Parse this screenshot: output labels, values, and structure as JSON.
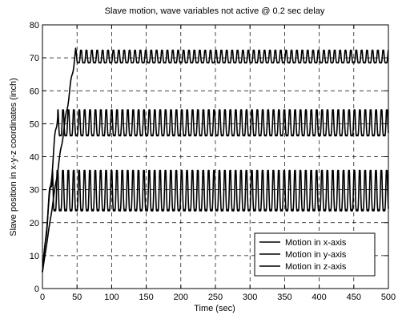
{
  "chart_data": {
    "type": "line",
    "title": "Slave motion, wave variables not active @ 0.2 sec delay",
    "xlabel": "Time (sec)",
    "ylabel": "Slave position in x-y-z coordinates (inch)",
    "xlim": [
      0,
      500
    ],
    "ylim": [
      0,
      80
    ],
    "xticks": [
      0,
      50,
      100,
      150,
      200,
      250,
      300,
      350,
      400,
      450,
      500
    ],
    "yticks": [
      0,
      10,
      20,
      30,
      40,
      50,
      60,
      70,
      80
    ],
    "grid": true,
    "legend_position": "bottom-right",
    "series": [
      {
        "name": "Motion in x-axis",
        "start": [
          0,
          5
        ],
        "ramp_end": [
          48,
          72
        ],
        "steady_center": 70,
        "steady_amplitude": 2.2,
        "oscillation_period": 7.8
      },
      {
        "name": "Motion in y-axis",
        "start": [
          0,
          5
        ],
        "ramp_end": [
          22,
          54
        ],
        "steady_center": 49.5,
        "steady_amplitude": 4.5,
        "oscillation_period": 7.8
      },
      {
        "name": "Motion in z-axis",
        "start": [
          0,
          5
        ],
        "ramp_end": [
          14,
          36
        ],
        "steady_center": 28.5,
        "steady_amplitude": 7,
        "oscillation_period": 7.8
      }
    ]
  }
}
